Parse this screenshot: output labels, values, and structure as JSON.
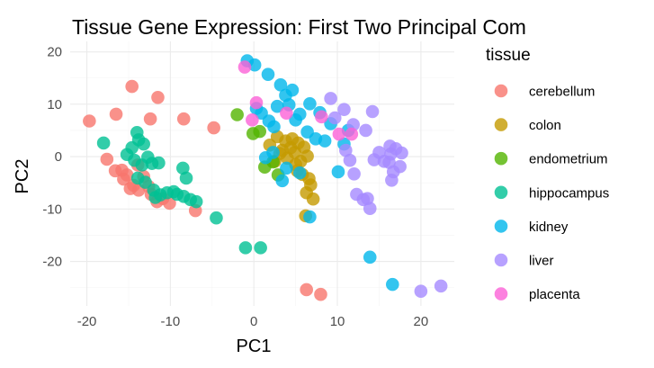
{
  "chart_data": {
    "type": "scatter",
    "title": "Tissue Gene Expression: First Two Principal Com",
    "xlabel": "PC1",
    "ylabel": "PC2",
    "xlim": [
      -22,
      24
    ],
    "ylim": [
      -28.5,
      22
    ],
    "x_ticks": [
      -20,
      -10,
      0,
      10,
      20
    ],
    "y_ticks": [
      -20,
      -10,
      0,
      10,
      20
    ],
    "x_tick_labels": [
      "-20",
      "-10",
      "0",
      "10",
      "20"
    ],
    "y_tick_labels": [
      "-20",
      "-10",
      "0",
      "10",
      "20"
    ],
    "grid": true,
    "legend_title": "tissue",
    "legend_position": "right",
    "point_alpha": 0.8,
    "series": [
      {
        "name": "cerebellum",
        "color": "#F8766D",
        "points": [
          [
            -19.7,
            6.8
          ],
          [
            -14.6,
            13.4
          ],
          [
            -11.5,
            11.3
          ],
          [
            -16.5,
            8.1
          ],
          [
            -12.4,
            7.2
          ],
          [
            -8.4,
            7.2
          ],
          [
            -4.8,
            5.5
          ],
          [
            -17.6,
            -0.5
          ],
          [
            -16.6,
            -2.7
          ],
          [
            -15.8,
            -2.6
          ],
          [
            -15.6,
            -4.3
          ],
          [
            -14.8,
            -6.1
          ],
          [
            -13.8,
            -6.4
          ],
          [
            -13.2,
            -3.8
          ],
          [
            -12.6,
            -5.7
          ],
          [
            -12.3,
            -7.2
          ],
          [
            -11.6,
            -8.6
          ],
          [
            -10.9,
            -8.0
          ],
          [
            -10.1,
            -8.9
          ],
          [
            -7.0,
            -10.3
          ],
          [
            -13.9,
            -1.6
          ],
          [
            -15.2,
            -3.5
          ],
          [
            -14.4,
            -5.5
          ],
          [
            6.3,
            -25.4
          ],
          [
            8.0,
            -26.3
          ]
        ]
      },
      {
        "name": "colon",
        "color": "#C49A00",
        "points": [
          [
            1.9,
            2.2
          ],
          [
            2.8,
            3.8
          ],
          [
            3.4,
            1.2
          ],
          [
            3.8,
            3.0
          ],
          [
            4.4,
            1.7
          ],
          [
            4.9,
            0.8
          ],
          [
            5.3,
            2.6
          ],
          [
            5.0,
            -1.5
          ],
          [
            5.6,
            -0.9
          ],
          [
            6.0,
            1.8
          ],
          [
            4.6,
            3.4
          ],
          [
            5.2,
            -2.7
          ],
          [
            6.6,
            -4.2
          ],
          [
            6.8,
            -5.4
          ],
          [
            6.3,
            -6.9
          ],
          [
            7.1,
            -8.1
          ],
          [
            6.2,
            -11.3
          ],
          [
            3.1,
            0.6
          ],
          [
            2.5,
            -0.9
          ],
          [
            6.4,
            0.1
          ],
          [
            4.0,
            -0.3
          ],
          [
            5.8,
            -3.4
          ]
        ]
      },
      {
        "name": "endometrium",
        "color": "#53B400",
        "points": [
          [
            -2.0,
            8.0
          ],
          [
            -0.1,
            4.4
          ],
          [
            0.7,
            4.8
          ],
          [
            1.3,
            -2.0
          ],
          [
            2.3,
            -1.0
          ],
          [
            2.9,
            -3.5
          ]
        ]
      },
      {
        "name": "hippocampus",
        "color": "#00C094",
        "points": [
          [
            -18.0,
            2.6
          ],
          [
            -15.2,
            0.4
          ],
          [
            -14.6,
            1.7
          ],
          [
            -13.8,
            3.2
          ],
          [
            -13.2,
            2.4
          ],
          [
            -14.3,
            -0.7
          ],
          [
            -13.4,
            -1.6
          ],
          [
            -12.7,
            -0.1
          ],
          [
            -12.2,
            -1.3
          ],
          [
            -11.4,
            -1.2
          ],
          [
            -14.0,
            4.6
          ],
          [
            -13.9,
            -4.1
          ],
          [
            -13.0,
            -4.9
          ],
          [
            -12.0,
            -6.4
          ],
          [
            -11.2,
            -7.3
          ],
          [
            -10.4,
            -6.9
          ],
          [
            -9.6,
            -6.7
          ],
          [
            -8.4,
            -7.6
          ],
          [
            -7.6,
            -8.2
          ],
          [
            -6.9,
            -8.6
          ],
          [
            -8.5,
            -2.2
          ],
          [
            -8.1,
            -4.1
          ],
          [
            -4.5,
            -11.7
          ],
          [
            -1.0,
            -17.4
          ],
          [
            0.8,
            -17.4
          ],
          [
            -11.8,
            -7.8
          ],
          [
            -9.2,
            -7.2
          ]
        ]
      },
      {
        "name": "kidney",
        "color": "#00B6EB",
        "points": [
          [
            -0.8,
            18.3
          ],
          [
            0.1,
            17.5
          ],
          [
            1.7,
            15.7
          ],
          [
            3.2,
            13.7
          ],
          [
            3.8,
            11.7
          ],
          [
            4.6,
            12.7
          ],
          [
            0.3,
            9.2
          ],
          [
            0.9,
            8.3
          ],
          [
            1.8,
            6.8
          ],
          [
            2.4,
            5.7
          ],
          [
            4.2,
            9.9
          ],
          [
            5.5,
            8.1
          ],
          [
            6.7,
            10.1
          ],
          [
            7.9,
            8.4
          ],
          [
            6.4,
            4.7
          ],
          [
            7.4,
            3.4
          ],
          [
            8.5,
            3.0
          ],
          [
            9.2,
            6.3
          ],
          [
            10.8,
            2.4
          ],
          [
            11.3,
            5.0
          ],
          [
            1.4,
            -0.2
          ],
          [
            2.3,
            0.8
          ],
          [
            3.9,
            -2.2
          ],
          [
            5.5,
            -3.1
          ],
          [
            6.7,
            -11.5
          ],
          [
            10.1,
            -2.9
          ],
          [
            13.9,
            -19.2
          ],
          [
            16.6,
            -24.4
          ],
          [
            3.4,
            -4.6
          ],
          [
            2.8,
            9.6
          ],
          [
            5.0,
            7.0
          ]
        ]
      },
      {
        "name": "liver",
        "color": "#A58AFF",
        "points": [
          [
            9.2,
            11.1
          ],
          [
            10.8,
            9.0
          ],
          [
            9.7,
            7.4
          ],
          [
            11.9,
            6.1
          ],
          [
            13.4,
            5.0
          ],
          [
            14.2,
            8.6
          ],
          [
            16.3,
            2.0
          ],
          [
            17.0,
            1.5
          ],
          [
            16.4,
            0.5
          ],
          [
            17.7,
            0.7
          ],
          [
            16.2,
            -1.1
          ],
          [
            16.7,
            -2.9
          ],
          [
            16.5,
            -4.5
          ],
          [
            15.6,
            -0.9
          ],
          [
            12.0,
            -3.3
          ],
          [
            12.3,
            -7.2
          ],
          [
            13.1,
            -8.2
          ],
          [
            13.6,
            -8.0
          ],
          [
            13.9,
            -9.9
          ],
          [
            15.0,
            0.8
          ],
          [
            17.5,
            -1.9
          ],
          [
            11.0,
            1.2
          ],
          [
            20.0,
            -25.7
          ],
          [
            22.4,
            -24.7
          ],
          [
            11.5,
            -0.7
          ],
          [
            14.4,
            -0.6
          ]
        ]
      },
      {
        "name": "placenta",
        "color": "#FB61D7",
        "points": [
          [
            -1.1,
            17.1
          ],
          [
            0.3,
            10.3
          ],
          [
            3.9,
            8.3
          ],
          [
            8.1,
            7.6
          ],
          [
            10.2,
            4.3
          ],
          [
            11.7,
            4.3
          ],
          [
            -0.2,
            7.0
          ]
        ]
      }
    ]
  }
}
